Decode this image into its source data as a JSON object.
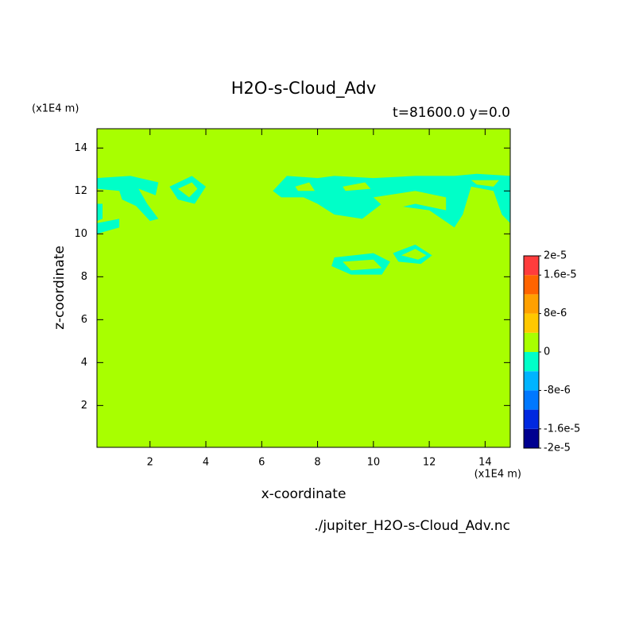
{
  "chart_data": {
    "type": "contour",
    "title": "H2O-s-Cloud_Adv",
    "subtitle": "t=81600.0 y=0.0",
    "y_unit": "(x1E4 m)",
    "x_unit": "(x1E4 m)",
    "x_label": "x-coordinate",
    "y_label": "z-coordinate",
    "footer": "./jupiter_H2O-s-Cloud_Adv.nc",
    "xlim": [
      0.1,
      14.9
    ],
    "ylim": [
      0.05,
      14.9
    ],
    "xticks": [
      2,
      4,
      6,
      8,
      10,
      12,
      14
    ],
    "yticks": [
      2,
      4,
      6,
      8,
      10,
      12,
      14
    ],
    "colorbar": {
      "levels": [
        -2e-05,
        -1.6e-05,
        -1.2e-05,
        -8e-06,
        -4e-06,
        0,
        4e-06,
        8e-06,
        1.2e-05,
        1.6e-05,
        2e-05
      ],
      "colors": [
        "#000090",
        "#0028e0",
        "#0078ff",
        "#00b4ff",
        "#00ffc8",
        "#a8ff00",
        "#ffc800",
        "#ffa000",
        "#ff6400",
        "#ff3c3c"
      ],
      "ticks": [
        {
          "value": 2e-05,
          "label": "2e-5"
        },
        {
          "value": 1.6e-05,
          "label": "1.6e-5"
        },
        {
          "value": 8e-06,
          "label": "8e-6"
        },
        0,
        {
          "value": -8e-06,
          "label": "-8e-6"
        },
        {
          "value": -1.6e-05,
          "label": "-1.6e-5"
        },
        {
          "value": -2e-05,
          "label": "-2e-5"
        }
      ]
    },
    "background_band": 5,
    "regions": [
      {
        "band": 4,
        "x": [
          0.1,
          1.3,
          2.3,
          2.2,
          1.6,
          0.9,
          0.1
        ],
        "z": [
          12.6,
          12.7,
          12.4,
          11.8,
          12.1,
          12.0,
          12.1
        ]
      },
      {
        "band": 4,
        "x": [
          0.9,
          1.5,
          1.9,
          2.3,
          2.0,
          1.5,
          1.0
        ],
        "z": [
          12.0,
          12.3,
          11.4,
          10.7,
          10.6,
          11.3,
          11.6
        ]
      },
      {
        "band": 4,
        "x": [
          0.1,
          0.9,
          0.9,
          0.1
        ],
        "z": [
          10.5,
          10.7,
          10.3,
          10.0
        ]
      },
      {
        "band": 4,
        "x": [
          0.1,
          0.3,
          0.3,
          0.1
        ],
        "z": [
          11.4,
          11.4,
          10.7,
          10.6
        ]
      },
      {
        "band": 4,
        "x": [
          2.7,
          3.5,
          4.0,
          3.6,
          3.0
        ],
        "z": [
          12.2,
          12.7,
          12.2,
          11.4,
          11.6
        ]
      },
      {
        "band": 5,
        "x": [
          3.0,
          3.5,
          3.7,
          3.4
        ],
        "z": [
          12.1,
          12.4,
          12.1,
          11.7
        ]
      },
      {
        "band": 4,
        "x": [
          6.4,
          6.9,
          8.0,
          8.6,
          10.0,
          11.5,
          12.9,
          13.7,
          14.9,
          14.9,
          14.6,
          14.3,
          13.5,
          13.2,
          12.9,
          12.0,
          10.3,
          9.6,
          8.6,
          8.0,
          7.5,
          6.7
        ],
        "z": [
          12.0,
          12.7,
          12.6,
          12.7,
          12.6,
          12.7,
          12.7,
          12.8,
          12.7,
          10.5,
          10.9,
          12.0,
          12.2,
          10.9,
          10.3,
          11.1,
          11.4,
          10.7,
          10.9,
          11.4,
          11.7,
          11.7
        ]
      },
      {
        "band": 5,
        "x": [
          7.2,
          7.7,
          7.9,
          7.3
        ],
        "z": [
          12.2,
          12.4,
          12.0,
          12.0
        ]
      },
      {
        "band": 5,
        "x": [
          8.9,
          9.7,
          9.9,
          9.0
        ],
        "z": [
          12.2,
          12.4,
          12.1,
          12.0
        ]
      },
      {
        "band": 5,
        "x": [
          10.0,
          11.5,
          12.6,
          12.6,
          11.5,
          10.5
        ],
        "z": [
          11.7,
          12.0,
          11.7,
          11.1,
          11.4,
          11.1
        ]
      },
      {
        "band": 5,
        "x": [
          13.5,
          14.5,
          14.3,
          13.7
        ],
        "z": [
          12.5,
          12.5,
          12.2,
          12.3
        ]
      },
      {
        "band": 4,
        "x": [
          8.6,
          10.0,
          10.6,
          10.3,
          9.2,
          8.5
        ],
        "z": [
          8.9,
          9.1,
          8.7,
          8.1,
          8.1,
          8.5
        ]
      },
      {
        "band": 5,
        "x": [
          8.9,
          10.0,
          10.3,
          9.2
        ],
        "z": [
          8.7,
          8.8,
          8.4,
          8.3
        ]
      },
      {
        "band": 4,
        "x": [
          10.7,
          11.5,
          12.1,
          11.7,
          10.9
        ],
        "z": [
          9.1,
          9.5,
          9.0,
          8.6,
          8.7
        ]
      },
      {
        "band": 5,
        "x": [
          11.0,
          11.5,
          11.9,
          11.6
        ],
        "z": [
          9.0,
          9.3,
          9.0,
          8.8
        ]
      }
    ]
  }
}
